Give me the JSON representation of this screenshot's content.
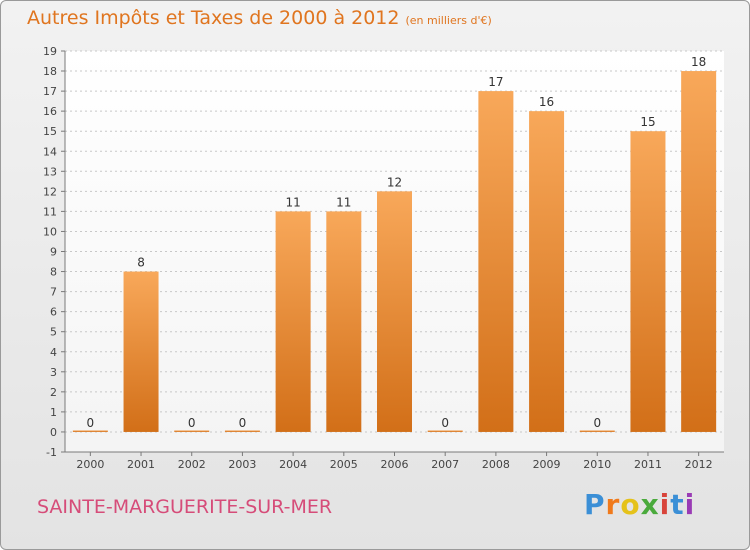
{
  "title": "Autres Impôts et Taxes de 2000 à 2012",
  "unit": "(en milliers d'€)",
  "commune": "SAINTE-MARGUERITE-SUR-MER",
  "logo_text": "Proxiti",
  "colors": {
    "title": "#e0751f",
    "commune": "#d64c79",
    "bar_top": "#f8a85a",
    "bar_bottom": "#d26f18",
    "grid": "#c8c8c8",
    "axis": "#7a7a7a"
  },
  "chart_data": {
    "type": "bar",
    "categories": [
      "2000",
      "2001",
      "2002",
      "2003",
      "2004",
      "2005",
      "2006",
      "2007",
      "2008",
      "2009",
      "2010",
      "2011",
      "2012"
    ],
    "values": [
      0,
      8,
      0,
      0,
      11,
      11,
      12,
      0,
      17,
      16,
      0,
      15,
      18
    ],
    "data_labels": [
      "0",
      "8",
      "0",
      "0",
      "11",
      "11",
      "12",
      "0",
      "17",
      "16",
      "0",
      "15",
      "18"
    ],
    "y_ticks": [
      -1,
      0,
      1,
      2,
      3,
      4,
      5,
      6,
      7,
      8,
      9,
      10,
      11,
      12,
      13,
      14,
      15,
      16,
      17,
      18,
      19
    ],
    "ylim": [
      -1,
      19
    ],
    "grid": "horizontal dashed",
    "title": "Autres Impôts et Taxes de 2000 à 2012",
    "xlabel": "",
    "ylabel": ""
  }
}
